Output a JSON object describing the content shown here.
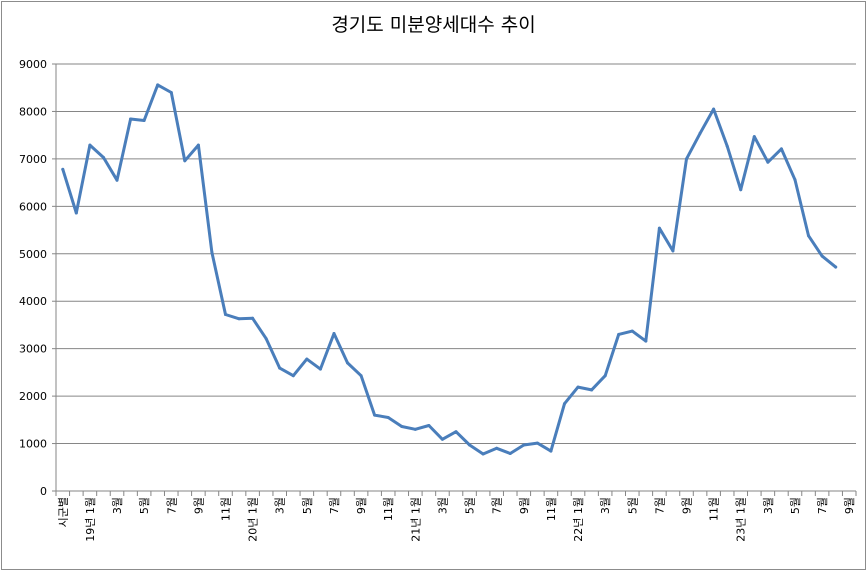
{
  "chart_data": {
    "type": "line",
    "title": "경기도 미분양세대수 추이",
    "ylim": [
      0,
      9000
    ],
    "yticks": [
      0,
      1000,
      2000,
      3000,
      4000,
      5000,
      6000,
      7000,
      8000,
      9000
    ],
    "grid": true,
    "legend": "none",
    "series_color": "#4a7ebb",
    "x_tick_labels": [
      "시군별",
      "19년 1월",
      "3월",
      "5월",
      "7월",
      "9월",
      "11월",
      "20년 1월",
      "3월",
      "5월",
      "7월",
      "9월",
      "11월",
      "21년 1월",
      "3월",
      "5월",
      "7월",
      "9월",
      "11월",
      "22년 1월",
      "3월",
      "5월",
      "7월",
      "9월",
      "11월",
      "23년 1월",
      "3월",
      "5월",
      "7월",
      "9월"
    ],
    "series": [
      {
        "values": [
          6780,
          5860,
          7290,
          7030,
          6550,
          7840,
          7810,
          8560,
          8400,
          6960,
          7290,
          5030,
          3720,
          3630,
          3640,
          3210,
          2590,
          2430,
          2780,
          2570,
          3320,
          2700,
          2430,
          1600,
          1550,
          1360,
          1300,
          1380,
          1090,
          1250,
          970,
          780,
          900,
          790,
          970,
          1010,
          840,
          1840,
          2190,
          2130,
          2430,
          3300,
          3370,
          3160,
          5540,
          5060,
          7000,
          7540,
          8050,
          7270,
          6350,
          7470,
          6930,
          7210,
          6560,
          5380,
          4950,
          4720
        ]
      }
    ]
  }
}
